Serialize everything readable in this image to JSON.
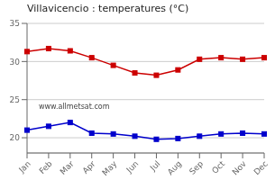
{
  "chart_data": {
    "type": "line",
    "title": "Villavicencio : temperatures (°C)",
    "categories": [
      "Jan",
      "Feb",
      "Mar",
      "Apr",
      "May",
      "Jun",
      "Jul",
      "Aug",
      "Sep",
      "Oct",
      "Nov",
      "Dec"
    ],
    "series": [
      {
        "color": "#cc0000",
        "marker": "square",
        "values": [
          31.3,
          31.7,
          31.4,
          30.5,
          29.5,
          28.5,
          28.2,
          28.9,
          30.3,
          30.5,
          30.3,
          30.5
        ]
      },
      {
        "color": "#0000cc",
        "marker": "square",
        "values": [
          21.0,
          21.5,
          22.0,
          20.6,
          20.5,
          20.2,
          19.8,
          19.9,
          20.2,
          20.5,
          20.6,
          20.5
        ]
      }
    ],
    "ylim": [
      18,
      35
    ],
    "yticks": [
      20,
      25,
      30,
      35
    ],
    "grid": true,
    "annotations": [
      "www.allmetsat.com"
    ]
  }
}
